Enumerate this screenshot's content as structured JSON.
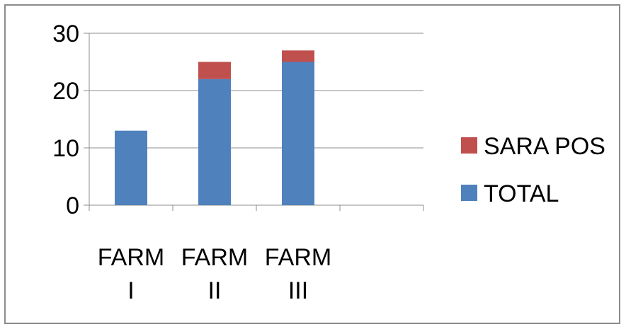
{
  "chart_data": {
    "type": "bar",
    "stacked": true,
    "categories": [
      "FARM I",
      "FARM II",
      "FARM III",
      ""
    ],
    "category_lines": [
      [
        "FARM",
        "I"
      ],
      [
        "FARM",
        "II"
      ],
      [
        "FARM",
        "III"
      ],
      [
        "",
        ""
      ]
    ],
    "series": [
      {
        "name": "TOTAL",
        "values": [
          13,
          22,
          25,
          null
        ],
        "color": "#4f81bd"
      },
      {
        "name": "SARA POS",
        "values": [
          0,
          3,
          2,
          null
        ],
        "color": "#c0504d"
      }
    ],
    "yticks": [
      0,
      10,
      20,
      30
    ],
    "ylim": [
      0,
      30
    ],
    "grid": true,
    "legend_position": "right",
    "legend_order": [
      "SARA POS",
      "TOTAL"
    ],
    "title": "",
    "xlabel": "",
    "ylabel": ""
  }
}
